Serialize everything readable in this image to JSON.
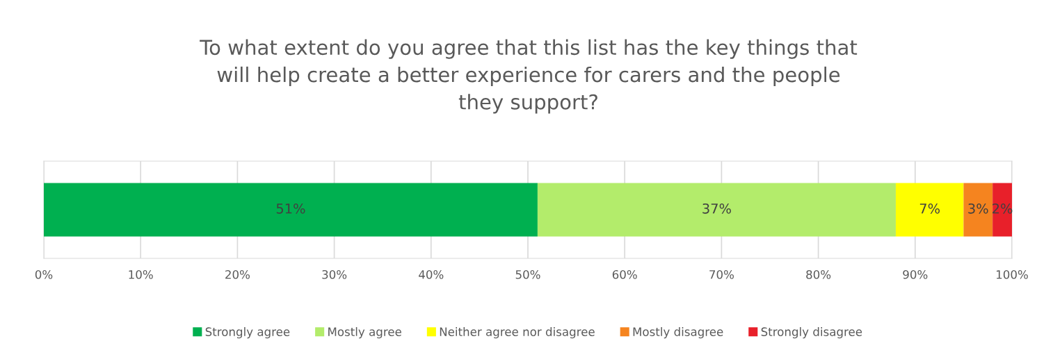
{
  "chart_data": {
    "type": "bar",
    "orientation": "horizontal",
    "stacked": true,
    "title": "To what extent do you agree that this list has the key things that\nwill help create a better experience for carers and the people\nthey support?",
    "categories": [
      null
    ],
    "series": [
      {
        "name": "Strongly agree",
        "color": "#00b050",
        "values": [
          51
        ],
        "value_labels": [
          "51%"
        ]
      },
      {
        "name": "Mostly agree",
        "color": "#b3ec6b",
        "values": [
          37
        ],
        "value_labels": [
          "37%"
        ]
      },
      {
        "name": "Neither agree nor disagree",
        "color": "#ffff00",
        "values": [
          7
        ],
        "value_labels": [
          "7%"
        ]
      },
      {
        "name": "Mostly disagree",
        "color": "#f5841f",
        "values": [
          3
        ],
        "value_labels": [
          "3%"
        ]
      },
      {
        "name": "Strongly disagree",
        "color": "#e8202a",
        "values": [
          2
        ],
        "value_labels": [
          "2%"
        ]
      }
    ],
    "xlim": [
      0,
      100
    ],
    "xticks": [
      {
        "value": 0,
        "label": "0%"
      },
      {
        "value": 10,
        "label": "10%"
      },
      {
        "value": 20,
        "label": "20%"
      },
      {
        "value": 30,
        "label": "30%"
      },
      {
        "value": 40,
        "label": "40%"
      },
      {
        "value": 50,
        "label": "50%"
      },
      {
        "value": 60,
        "label": "60%"
      },
      {
        "value": 70,
        "label": "70%"
      },
      {
        "value": 80,
        "label": "80%"
      },
      {
        "value": 90,
        "label": "90%"
      },
      {
        "value": 100,
        "label": "100%"
      }
    ],
    "tick_labels": "x",
    "grid": "x",
    "legend": "bottom"
  }
}
